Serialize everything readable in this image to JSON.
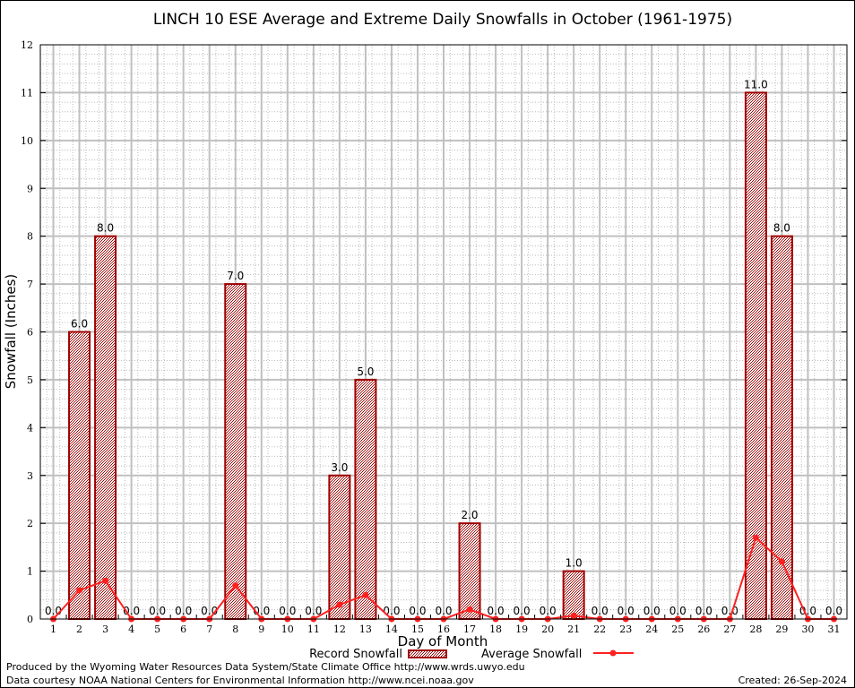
{
  "chart_data": {
    "type": "bar",
    "title": "LINCH 10 ESE Average and Extreme Daily Snowfalls in October (1961-1975)",
    "xlabel": "Day of Month",
    "ylabel": "Snowfall (Inches)",
    "ylim": [
      0,
      12
    ],
    "yticks": [
      "0",
      "1",
      "2",
      "3",
      "4",
      "5",
      "6",
      "7",
      "8",
      "9",
      "10",
      "11",
      "12"
    ],
    "categories": [
      "1",
      "2",
      "3",
      "4",
      "5",
      "6",
      "7",
      "8",
      "9",
      "10",
      "11",
      "12",
      "13",
      "14",
      "15",
      "16",
      "17",
      "18",
      "19",
      "20",
      "21",
      "22",
      "23",
      "24",
      "25",
      "26",
      "27",
      "28",
      "29",
      "30",
      "31"
    ],
    "grid": true,
    "legend_position": "bottom-center",
    "series": [
      {
        "name": "Record Snowfall",
        "type": "bar",
        "color": "#a00000",
        "values": [
          0,
          6,
          8,
          0,
          0,
          0,
          0,
          7,
          0,
          0,
          0,
          3,
          5,
          0,
          0,
          0,
          2,
          0,
          0,
          0,
          1,
          0,
          0,
          0,
          0,
          0,
          0,
          11,
          8,
          0,
          0
        ],
        "labels": [
          "0.0",
          "6.0",
          "8.0",
          "0.0",
          "0.0",
          "0.0",
          "0.0",
          "7.0",
          "0.0",
          "0.0",
          "0.0",
          "3.0",
          "5.0",
          "0.0",
          "0.0",
          "0.0",
          "2.0",
          "0.0",
          "0.0",
          "0.0",
          "1.0",
          "0.0",
          "0.0",
          "0.0",
          "0.0",
          "0.0",
          "0.0",
          "11.0",
          "8.0",
          "0.0",
          "0.0"
        ]
      },
      {
        "name": "Average Snowfall",
        "type": "line",
        "color": "#ff2020",
        "values": [
          0,
          0.6,
          0.8,
          0,
          0,
          0,
          0,
          0.7,
          0,
          0,
          0,
          0.3,
          0.5,
          0,
          0,
          0,
          0.2,
          0,
          0,
          0,
          0.07,
          0,
          0,
          0,
          0,
          0,
          0,
          1.7,
          1.2,
          0,
          0
        ]
      }
    ]
  },
  "footer": {
    "line1": "Produced by the Wyoming Water Resources Data System/State Climate Office http://www.wrds.uwyo.edu",
    "line2": "Data courtesy NOAA National Centers for Environmental Information http://www.ncei.noaa.gov",
    "created": "Created:  26-Sep-2024"
  }
}
